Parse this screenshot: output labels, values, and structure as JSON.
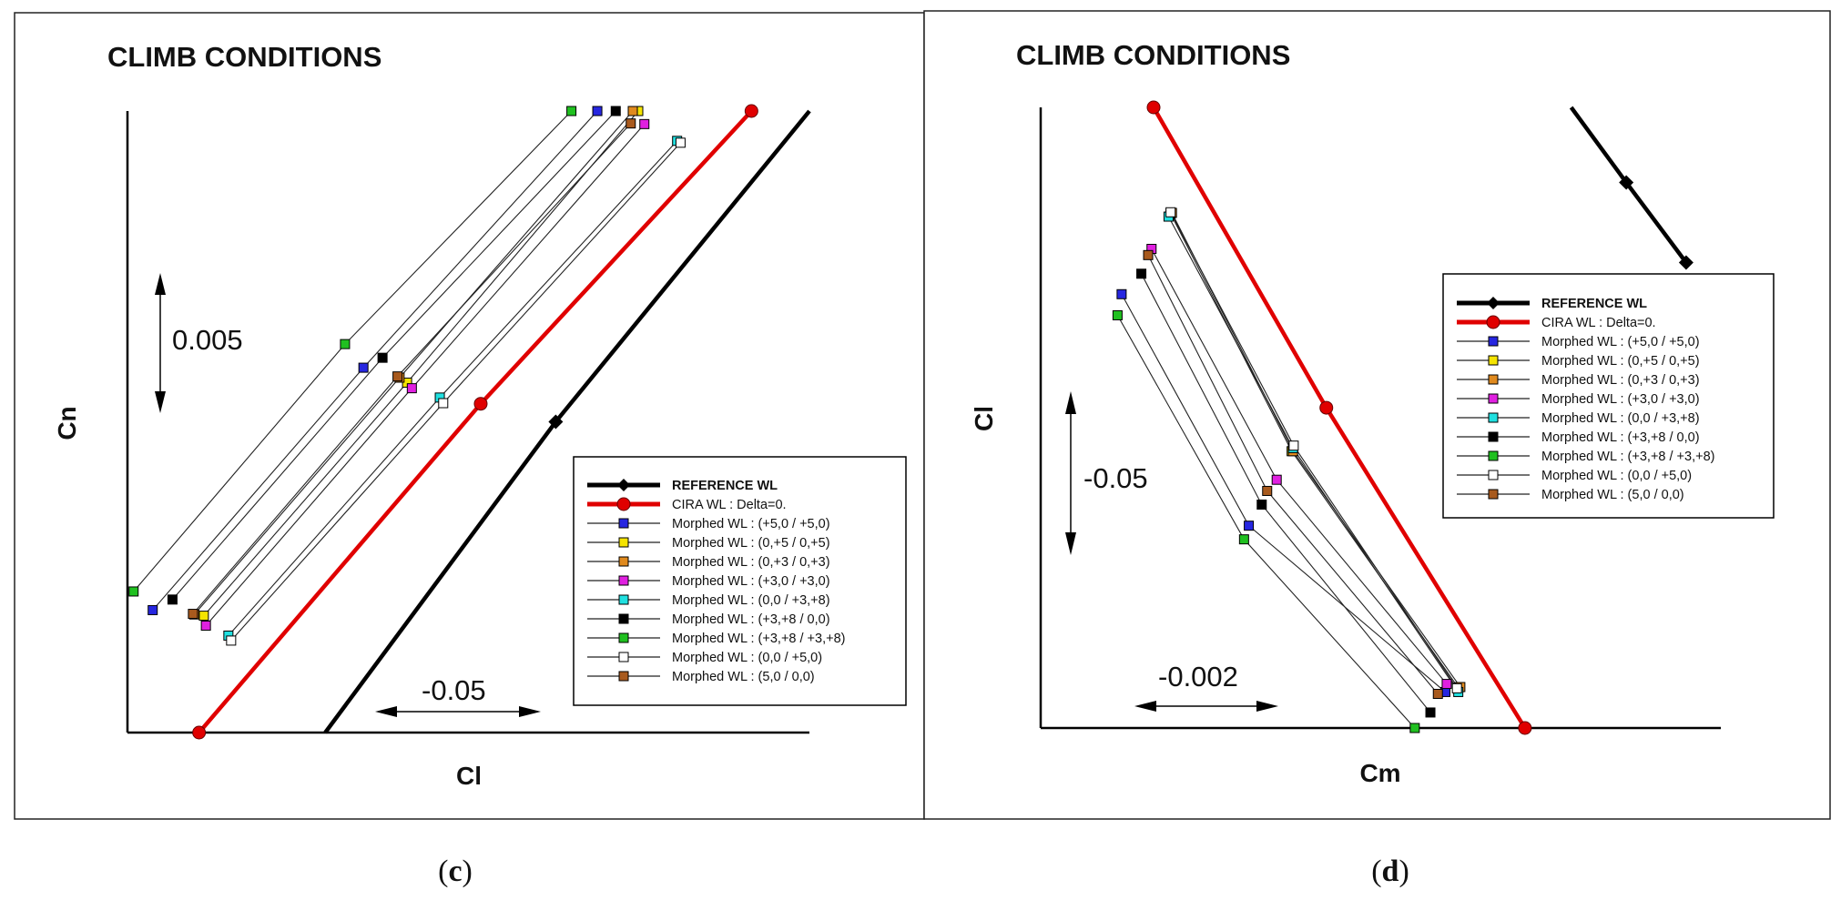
{
  "chart_data": [
    {
      "type": "line",
      "panel": "c",
      "caption_label": "c",
      "title": "CLIMB CONDITIONS",
      "xlabel": "Cl",
      "ylabel": "Cn",
      "scale_bars": {
        "vertical": "0.005",
        "horizontal": "-0.05"
      },
      "legend_position": "bottom-right",
      "series": [
        {
          "name": "REFERENCE WL",
          "color": "#000000",
          "marker": "diamond",
          "style": "thick",
          "points": [
            [
              0.29,
              0.0
            ],
            [
              0.628,
              0.5
            ],
            [
              1.0,
              1.0
            ]
          ]
        },
        {
          "name": "CIRA WL : Delta=0.",
          "color": "#e00000",
          "marker": "circle",
          "style": "thick",
          "points": [
            [
              0.105,
              0.0
            ],
            [
              0.518,
              0.529
            ],
            [
              0.915,
              1.0
            ]
          ]
        },
        {
          "name": "Morphed WL : (+5,0 / +5,0)",
          "color": "#2626e0",
          "marker": "square",
          "points": [
            [
              0.037,
              0.197
            ],
            [
              0.346,
              0.587
            ],
            [
              0.689,
              1.0
            ]
          ]
        },
        {
          "name": "Morphed WL : (0,+5 / 0,+5)",
          "color": "#f5e400",
          "marker": "square",
          "points": [
            [
              0.112,
              0.188
            ],
            [
              0.41,
              0.563
            ],
            [
              0.749,
              1.0
            ]
          ]
        },
        {
          "name": "Morphed WL : (0,+3 / 0,+3)",
          "color": "#e08a1e",
          "marker": "square",
          "points": [
            [
              0.098,
              0.19
            ],
            [
              0.399,
              0.571
            ],
            [
              0.741,
              1.0
            ]
          ]
        },
        {
          "name": "Morphed WL : (+3,0 / +3,0)",
          "color": "#e020e0",
          "marker": "square",
          "points": [
            [
              0.115,
              0.172
            ],
            [
              0.417,
              0.554
            ],
            [
              0.758,
              0.979
            ]
          ]
        },
        {
          "name": "Morphed WL : (0,0 / +3,+8)",
          "color": "#20e0e0",
          "marker": "square",
          "points": [
            [
              0.148,
              0.156
            ],
            [
              0.458,
              0.539
            ],
            [
              0.806,
              0.952
            ]
          ]
        },
        {
          "name": "Morphed WL : (+3,+8 / 0,0)",
          "color": "#000000",
          "marker": "square",
          "points": [
            [
              0.066,
              0.214
            ],
            [
              0.374,
              0.603
            ],
            [
              0.716,
              1.0
            ]
          ]
        },
        {
          "name": "Morphed WL : (+3,+8 / +3,+8)",
          "color": "#20c020",
          "marker": "square",
          "points": [
            [
              0.009,
              0.227
            ],
            [
              0.319,
              0.625
            ],
            [
              0.651,
              1.0
            ]
          ]
        },
        {
          "name": "Morphed WL : (0,0 / +5,0)",
          "color": "#ffffff",
          "marker": "square",
          "points": [
            [
              0.152,
              0.148
            ],
            [
              0.463,
              0.53
            ],
            [
              0.811,
              0.949
            ]
          ]
        },
        {
          "name": "Morphed WL : (5,0 / 0,0)",
          "color": "#a85a1e",
          "marker": "square",
          "points": [
            [
              0.096,
              0.191
            ],
            [
              0.396,
              0.573
            ],
            [
              0.738,
              0.98
            ]
          ]
        }
      ]
    },
    {
      "type": "line",
      "panel": "d",
      "caption_label": "d",
      "title": "CLIMB CONDITIONS",
      "xlabel": "Cm",
      "ylabel": "Cl",
      "scale_bars": {
        "vertical": "-0.05",
        "horizontal": "-0.002"
      },
      "legend_position": "top-right",
      "series": [
        {
          "name": "REFERENCE WL",
          "color": "#000000",
          "marker": "diamond",
          "style": "thick",
          "points": [
            [
              0.78,
              1.0
            ],
            [
              0.861,
              0.879
            ],
            [
              0.949,
              0.75
            ]
          ]
        },
        {
          "name": "CIRA WL : Delta=0.",
          "color": "#e00000",
          "marker": "circle",
          "style": "thick",
          "points": [
            [
              0.166,
              1.0
            ],
            [
              0.42,
              0.516
            ],
            [
              0.712,
              0.0
            ]
          ]
        },
        {
          "name": "Morphed WL : (+5,0 / +5,0)",
          "color": "#2626e0",
          "marker": "square",
          "points": [
            [
              0.119,
              0.699
            ],
            [
              0.306,
              0.326
            ],
            [
              0.595,
              0.058
            ]
          ]
        },
        {
          "name": "Morphed WL : (0,+5 / 0,+5)",
          "color": "#f5e400",
          "marker": "square",
          "points": [
            [
              0.191,
              0.829
            ],
            [
              0.369,
              0.446
            ],
            [
              0.614,
              0.065
            ]
          ]
        },
        {
          "name": "Morphed WL : (0,+3 / 0,+3)",
          "color": "#e08a1e",
          "marker": "square",
          "points": [
            [
              0.193,
              0.83
            ],
            [
              0.371,
              0.446
            ],
            [
              0.617,
              0.066
            ]
          ]
        },
        {
          "name": "Morphed WL : (+3,0 / +3,0)",
          "color": "#e020e0",
          "marker": "square",
          "points": [
            [
              0.163,
              0.772
            ],
            [
              0.347,
              0.4
            ],
            [
              0.597,
              0.071
            ]
          ]
        },
        {
          "name": "Morphed WL : (0,0 / +3,+8)",
          "color": "#20e0e0",
          "marker": "square",
          "points": [
            [
              0.188,
              0.824
            ],
            [
              0.371,
              0.451
            ],
            [
              0.614,
              0.058
            ]
          ]
        },
        {
          "name": "Morphed WL : (+3,+8 / 0,0)",
          "color": "#000000",
          "marker": "square",
          "points": [
            [
              0.148,
              0.732
            ],
            [
              0.325,
              0.36
            ],
            [
              0.573,
              0.025
            ]
          ]
        },
        {
          "name": "Morphed WL : (+3,+8 / +3,+8)",
          "color": "#20c020",
          "marker": "square",
          "points": [
            [
              0.113,
              0.665
            ],
            [
              0.299,
              0.304
            ],
            [
              0.55,
              0.0
            ]
          ]
        },
        {
          "name": "Morphed WL : (0,0 / +5,0)",
          "color": "#ffffff",
          "marker": "square",
          "points": [
            [
              0.191,
              0.831
            ],
            [
              0.372,
              0.455
            ],
            [
              0.612,
              0.064
            ]
          ]
        },
        {
          "name": "Morphed WL : (5,0 / 0,0)",
          "color": "#a85a1e",
          "marker": "square",
          "points": [
            [
              0.158,
              0.762
            ],
            [
              0.333,
              0.382
            ],
            [
              0.584,
              0.055
            ]
          ]
        }
      ]
    }
  ]
}
